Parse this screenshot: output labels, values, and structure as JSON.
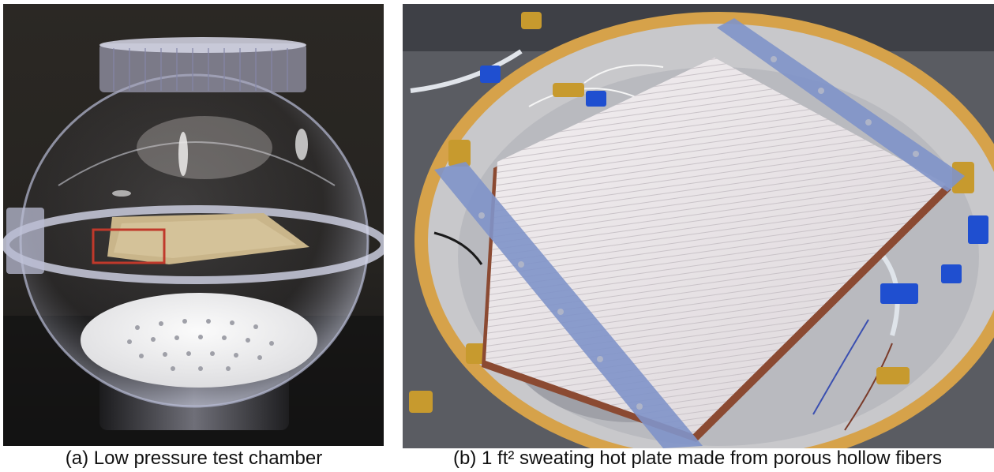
{
  "figure": {
    "panels": [
      {
        "id": "a",
        "caption": "(a) Low pressure test chamber",
        "photo": "clear spherical acrylic vacuum chamber with perforated white platform and fibrous sample inside, red box marking region"
      },
      {
        "id": "b",
        "caption": "(b) 1 ft² sweating hot plate made from porous hollow fibers",
        "photo": "top view into chamber showing square white hollow-fiber plate held by blue clamps, surrounded by tubing, blue connectors and brass fittings"
      }
    ]
  },
  "colors": {
    "background_left": "#2a2723",
    "chamber_rim": "#d6a24a",
    "fiber_plate": "#e9e3e6",
    "clamp_blue": "#7f93c9",
    "highlight_box": "#c0392b"
  }
}
